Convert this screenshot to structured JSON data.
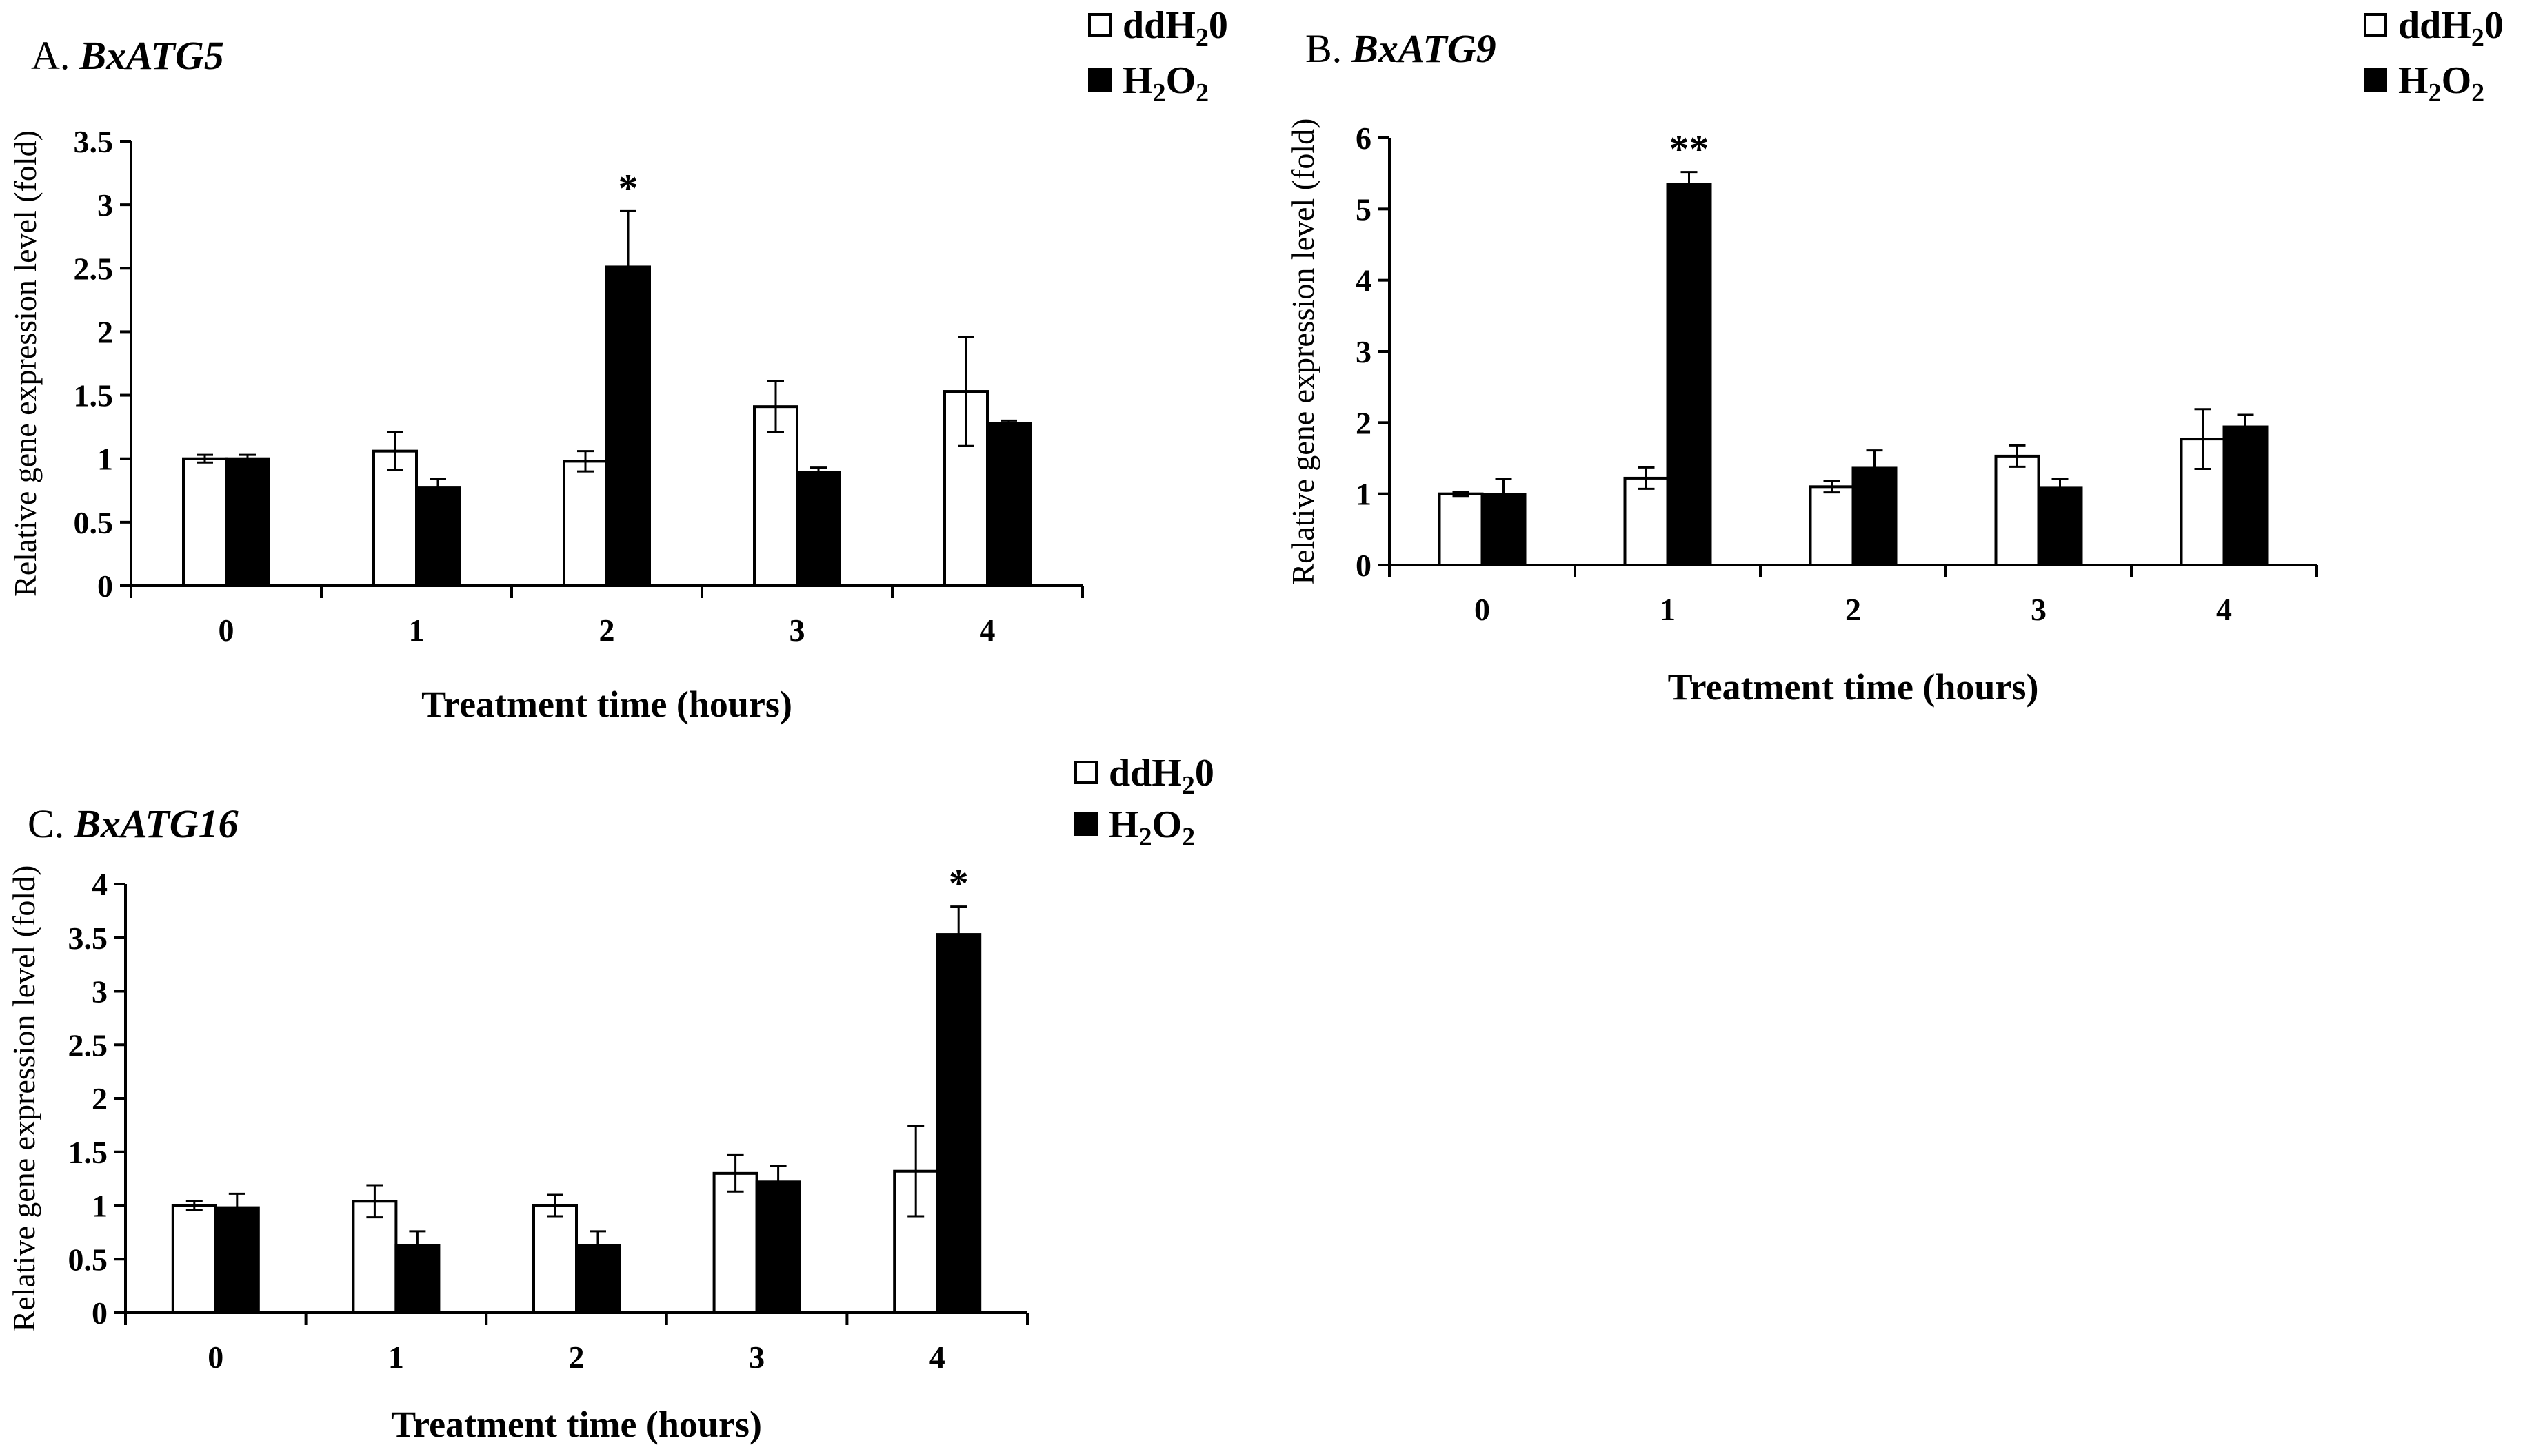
{
  "chart_data": [
    {
      "type": "bar",
      "panel_letter": "A.",
      "title": "BxATG5",
      "xlabel": "Treatment time (hours)",
      "ylabel": "Relative gene expression level (fold)",
      "categories": [
        "0",
        "1",
        "2",
        "3",
        "4"
      ],
      "ylim": [
        0,
        3.5
      ],
      "yticks": [
        "0",
        "0.5",
        "1",
        "1.5",
        "2",
        "2.5",
        "3",
        "3.5"
      ],
      "legend": {
        "items": [
          "ddH",
          "H",
          "O"
        ],
        "subs": [
          "2",
          "0",
          "2",
          "2"
        ],
        "placement": "top-right"
      },
      "series": [
        {
          "name": "ddH20",
          "color": "#ffffff",
          "values": [
            1.0,
            1.06,
            0.98,
            1.41,
            1.53
          ],
          "errors": [
            0.03,
            0.15,
            0.08,
            0.2,
            0.43
          ]
        },
        {
          "name": "H2O2",
          "color": "#000000",
          "values": [
            1.0,
            0.77,
            2.51,
            0.89,
            1.28
          ],
          "errors": [
            0.03,
            0.07,
            0.44,
            0.04,
            0.02
          ]
        }
      ],
      "significance": [
        {
          "category": "2",
          "series": 1,
          "label": "*"
        }
      ]
    },
    {
      "type": "bar",
      "panel_letter": "B.",
      "title": "BxATG9",
      "xlabel": "Treatment time (hours)",
      "ylabel": "Relative gene expression level (fold)",
      "categories": [
        "0",
        "1",
        "2",
        "3",
        "4"
      ],
      "ylim": [
        0,
        6
      ],
      "yticks": [
        "0",
        "1",
        "2",
        "3",
        "4",
        "5",
        "6"
      ],
      "legend": {
        "items": [
          "ddH",
          "H",
          "O"
        ],
        "subs": [
          "2",
          "0",
          "2",
          "2"
        ],
        "placement": "top-right"
      },
      "series": [
        {
          "name": "ddH20",
          "color": "#ffffff",
          "values": [
            1.0,
            1.22,
            1.1,
            1.53,
            1.77
          ],
          "errors": [
            0.03,
            0.15,
            0.08,
            0.15,
            0.42
          ]
        },
        {
          "name": "H2O2",
          "color": "#000000",
          "values": [
            0.99,
            5.35,
            1.36,
            1.08,
            1.94
          ],
          "errors": [
            0.22,
            0.17,
            0.25,
            0.13,
            0.17
          ]
        }
      ],
      "significance": [
        {
          "category": "1",
          "series": 1,
          "label": "**"
        }
      ]
    },
    {
      "type": "bar",
      "panel_letter": "C.",
      "title": "BxATG16",
      "xlabel": "Treatment time (hours)",
      "ylabel": "Relative gene expression level (fold)",
      "categories": [
        "0",
        "1",
        "2",
        "3",
        "4"
      ],
      "ylim": [
        0,
        4
      ],
      "yticks": [
        "0",
        "0.5",
        "1",
        "1.5",
        "2",
        "2.5",
        "3",
        "3.5",
        "4"
      ],
      "legend": {
        "items": [
          "ddH",
          "H",
          "O"
        ],
        "subs": [
          "2",
          "0",
          "2",
          "2"
        ],
        "placement": "top-right"
      },
      "series": [
        {
          "name": "ddH20",
          "color": "#ffffff",
          "values": [
            1.0,
            1.04,
            1.0,
            1.3,
            1.32
          ],
          "errors": [
            0.04,
            0.15,
            0.1,
            0.17,
            0.42
          ]
        },
        {
          "name": "H2O2",
          "color": "#000000",
          "values": [
            0.98,
            0.63,
            0.63,
            1.22,
            3.53
          ],
          "errors": [
            0.13,
            0.13,
            0.13,
            0.15,
            0.26
          ]
        }
      ],
      "significance": [
        {
          "category": "4",
          "series": 1,
          "label": "*"
        }
      ]
    }
  ]
}
